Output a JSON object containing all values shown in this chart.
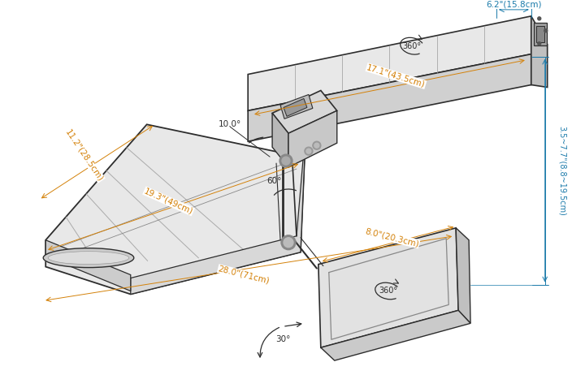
{
  "bg_color": "#ffffff",
  "line_color": "#2d2d2d",
  "dim_color_orange": "#d4820a",
  "dim_color_blue": "#1a7aaa",
  "dimensions": {
    "track_width": "6.2\"(15.8cm)",
    "track_length": "17.1\"(43.5cm)",
    "tray_width": "11.2\"(28.5cm)",
    "tray_length_short": "19.3\"(49cm)",
    "tray_length_full": "28.0\"(71cm)",
    "mousepad_width": "8.0\"(20.3cm)",
    "height_adjust": "3.5~7.7\"(8.8~19.5cm)",
    "tilt_angle": "10.0°",
    "swivel_angle1": "60°",
    "swivel_360_track": "360°",
    "swivel_360_pad": "360°",
    "tilt_30": "30°"
  }
}
